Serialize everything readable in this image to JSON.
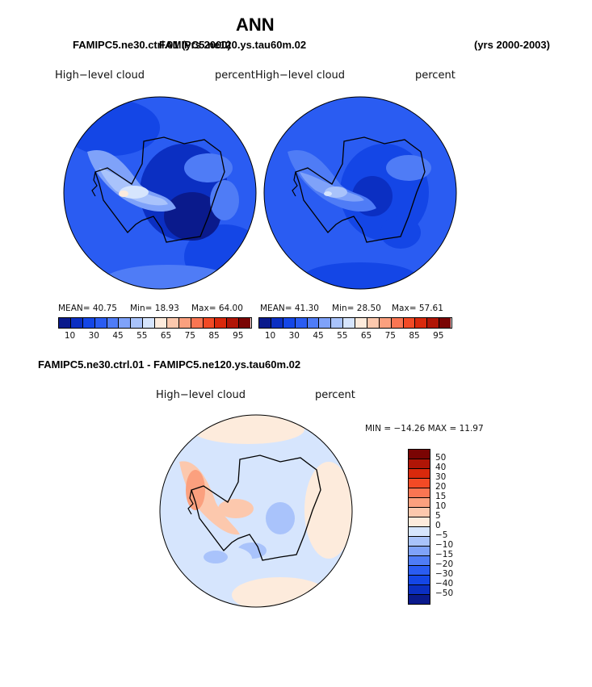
{
  "header": {
    "title": "ANN",
    "left_subtitle_1": "FAMIPC5.ne30.ctrl.01 (yrs 2000)",
    "left_subtitle_2": "FAMIPC5.ne120.ys.tau60m.02",
    "right_subtitle": "(yrs 2000-2003)"
  },
  "panels": [
    {
      "var_label": "High−level cloud",
      "units": "percent",
      "mean": "MEAN=  40.75",
      "min": "Min=  18.93",
      "max": "Max=  64.00"
    },
    {
      "var_label": "High−level cloud",
      "units": "percent",
      "mean": "MEAN=  41.30",
      "min": "Min=  28.50",
      "max": "Max=  57.61"
    }
  ],
  "colorbar_top": {
    "colors": [
      "#0a1a8c",
      "#0b2fc2",
      "#1446e6",
      "#2a5cf2",
      "#4f7cf6",
      "#7fa2f9",
      "#a9c3fb",
      "#d6e5fd",
      "#fdebdc",
      "#fcc8ad",
      "#fba07e",
      "#f97552",
      "#f24a25",
      "#d9290c",
      "#b01506",
      "#7a0403"
    ],
    "ticks": [
      "10",
      "30",
      "45",
      "55",
      "65",
      "75",
      "85",
      "95"
    ]
  },
  "diff_panel": {
    "title": "FAMIPC5.ne30.ctrl.01 - FAMIPC5.ne120.ys.tau60m.02",
    "var_label": "High−level cloud",
    "units": "percent",
    "minmax": "MIN = −14.26  MAX =   11.97"
  },
  "colorbar_diff": {
    "colors": [
      "#7a0403",
      "#b01506",
      "#d9290c",
      "#f24a25",
      "#f97552",
      "#fba07e",
      "#fcc8ad",
      "#fdebdc",
      "#d6e5fd",
      "#a9c3fb",
      "#7fa2f9",
      "#4f7cf6",
      "#2a5cf2",
      "#1446e6",
      "#0b2fc2",
      "#0a1a8c"
    ],
    "labels": [
      "50",
      "40",
      "30",
      "20",
      "15",
      "10",
      "5",
      "0",
      "−5",
      "−10",
      "−15",
      "−20",
      "−30",
      "−40",
      "−50"
    ]
  }
}
